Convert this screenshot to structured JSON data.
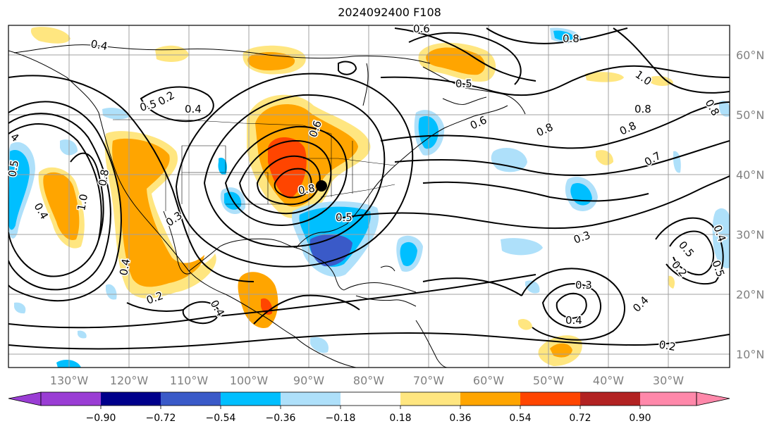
{
  "title": "2024092400 F108",
  "longitude_labels": [
    "130°W",
    "120°W",
    "110°W",
    "100°W",
    "90°W",
    "80°W",
    "70°W",
    "60°W",
    "50°W",
    "40°W",
    "30°W"
  ],
  "latitude_labels": [
    "60°N",
    "50°N",
    "40°N",
    "30°N",
    "20°N",
    "10°N"
  ],
  "colorbar": {
    "ticks": [
      "−0.90",
      "−0.72",
      "−0.54",
      "−0.36",
      "−0.18",
      "0.18",
      "0.36",
      "0.54",
      "0.72",
      "0.90"
    ],
    "colors": [
      "#9a3dd4",
      "#00008b",
      "#3a5ac8",
      "#00bfff",
      "#aee0fa",
      "#ffffff",
      "#ffe680",
      "#ffa500",
      "#ff4500",
      "#b22222",
      "#ff88aa"
    ]
  },
  "contour_labels": [
    {
      "text": "0.4"
    },
    {
      "text": "0.5"
    },
    {
      "text": "0.2"
    },
    {
      "text": "0.4"
    },
    {
      "text": "4"
    },
    {
      "text": "0.5"
    },
    {
      "text": "0.4"
    },
    {
      "text": "1.0"
    },
    {
      "text": "0.8"
    },
    {
      "text": "0.4"
    },
    {
      "text": "0.3"
    },
    {
      "text": "0.2"
    },
    {
      "text": "0.4"
    },
    {
      "text": "0.5"
    },
    {
      "text": "0.8"
    },
    {
      "text": "0.5"
    },
    {
      "text": "0.6"
    },
    {
      "text": "0.6"
    },
    {
      "text": "0.8"
    },
    {
      "text": "1.0"
    },
    {
      "text": "0.8"
    },
    {
      "text": "0.8"
    },
    {
      "text": "0.8"
    },
    {
      "text": "0.7"
    },
    {
      "text": "0.3"
    },
    {
      "text": "0.3"
    },
    {
      "text": "0.4"
    },
    {
      "text": "0.4"
    },
    {
      "text": "0.2"
    },
    {
      "text": "0.5"
    },
    {
      "text": "0.2"
    },
    {
      "text": "0.4"
    },
    {
      "text": "0.5"
    },
    {
      "text": "0.8"
    },
    {
      "text": "0.6"
    }
  ],
  "colors": {
    "contour": "#000000",
    "grid": "#a0a0a0",
    "axis_label": "#808080",
    "marker": "#000000"
  }
}
